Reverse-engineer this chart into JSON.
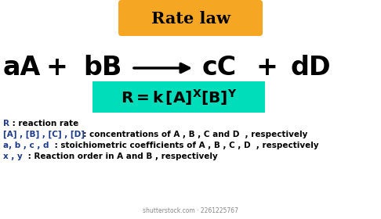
{
  "title": "Rate law",
  "title_bg": "#F5A623",
  "title_color": "#000000",
  "formula_bg": "#00DDBB",
  "blue_color": "#1E3A8A",
  "watermark": "shutterstock.com · 2261225767",
  "bg_color": "#ffffff",
  "eq_parts": [
    "aA",
    "+",
    "bB",
    "cC",
    "+",
    "dD"
  ],
  "legend": [
    {
      "blue": "R",
      "black": " : reaction rate"
    },
    {
      "blue": "[A] , [B] , [C] , [D]",
      "black": "  : concentrations of A , B , C and D  , respectively"
    },
    {
      "blue": "a, b , c , d",
      "black": " : stoichiometric coefficients of A , B , C , D  , respectively"
    },
    {
      "blue": "x , y",
      "black": " : Reaction order in A and B , respectively"
    }
  ]
}
